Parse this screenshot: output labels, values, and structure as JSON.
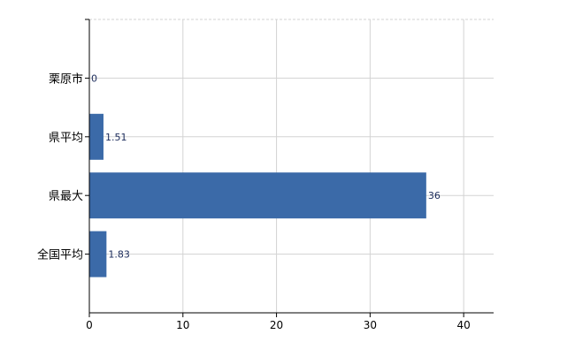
{
  "chart_data": {
    "type": "bar",
    "orientation": "horizontal",
    "categories": [
      "栗原市",
      "県平均",
      "県最大",
      "全国平均"
    ],
    "values": [
      0,
      1.51,
      36,
      1.83
    ],
    "value_labels": [
      "0",
      "1.51",
      "36",
      "1.83"
    ],
    "title": "",
    "xlabel": "",
    "ylabel": "",
    "xlim": [
      0,
      43.2
    ],
    "xticks": [
      "0",
      "10",
      "20",
      "30",
      "40"
    ],
    "grid": true,
    "legend": "none",
    "colors": {
      "bar": "#3b6aa8",
      "grid": "#d3d3d3",
      "axis": "#000000",
      "label": "#1a2a5a"
    }
  }
}
